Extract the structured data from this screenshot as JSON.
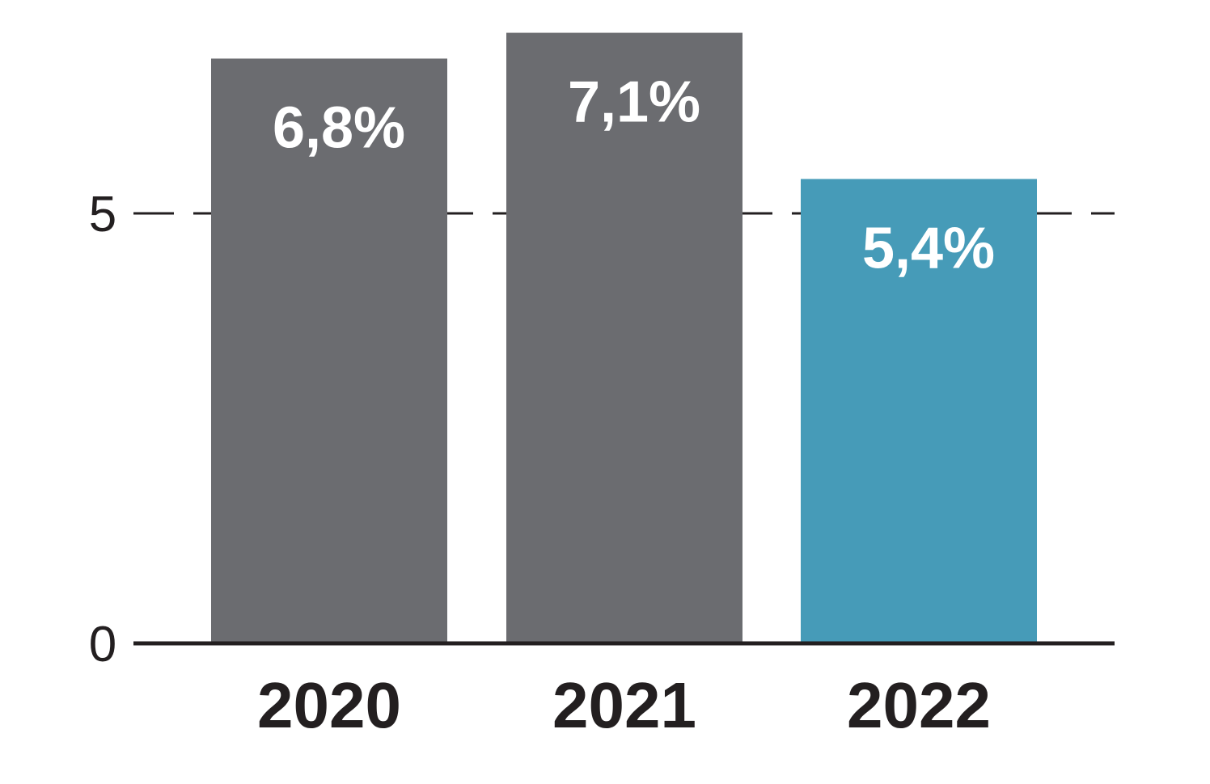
{
  "chart_data": {
    "type": "bar",
    "categories": [
      "2020",
      "2021",
      "2022"
    ],
    "values": [
      6.8,
      7.1,
      5.4
    ],
    "data_labels": [
      "6,8%",
      "7,1%",
      "5,4%"
    ],
    "y_ticks": [
      "0",
      "5"
    ],
    "ylim": [
      0,
      7.5
    ],
    "gridline_at": 5,
    "grid": "dashed horizontal line at 5",
    "bar_colors": [
      "#6b6c70",
      "#6b6c70",
      "#469bb8"
    ],
    "axis_color": "#231f20"
  }
}
